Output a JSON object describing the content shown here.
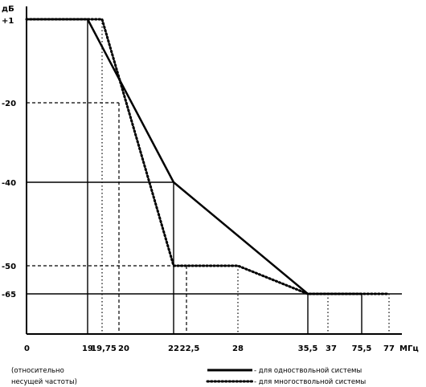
{
  "chart_data": {
    "type": "line",
    "yunit": "дБ",
    "xunit": "МГц",
    "note": [
      "(относительно",
      "несущей частоты)"
    ],
    "x_ticks": [
      "0",
      "19",
      "19,75",
      "20",
      "22",
      "22,5",
      "28",
      "35,5",
      "37",
      "75,5",
      "77"
    ],
    "y_ticks": [
      "+1",
      "-20",
      "-40",
      "-50",
      "-65"
    ],
    "series": [
      {
        "name": "- для одноствольной системы",
        "style": "solid",
        "points": [
          [
            "0",
            1
          ],
          [
            "19",
            1
          ],
          [
            "22",
            -40
          ],
          [
            "35,5",
            -65
          ],
          [
            "75,5",
            -65
          ]
        ]
      },
      {
        "name": "- для многоствольной системы",
        "style": "dotted",
        "points": [
          [
            "0",
            1
          ],
          [
            "19,75",
            1
          ],
          [
            "22",
            -50
          ],
          [
            "22,5",
            -50
          ],
          [
            "28",
            -50
          ],
          [
            "35,5",
            -65
          ],
          [
            "77",
            -65
          ]
        ]
      }
    ],
    "grid": false,
    "legend_position": "bottom-right"
  },
  "colors": {
    "line": "#000000",
    "background": "#ffffff"
  }
}
